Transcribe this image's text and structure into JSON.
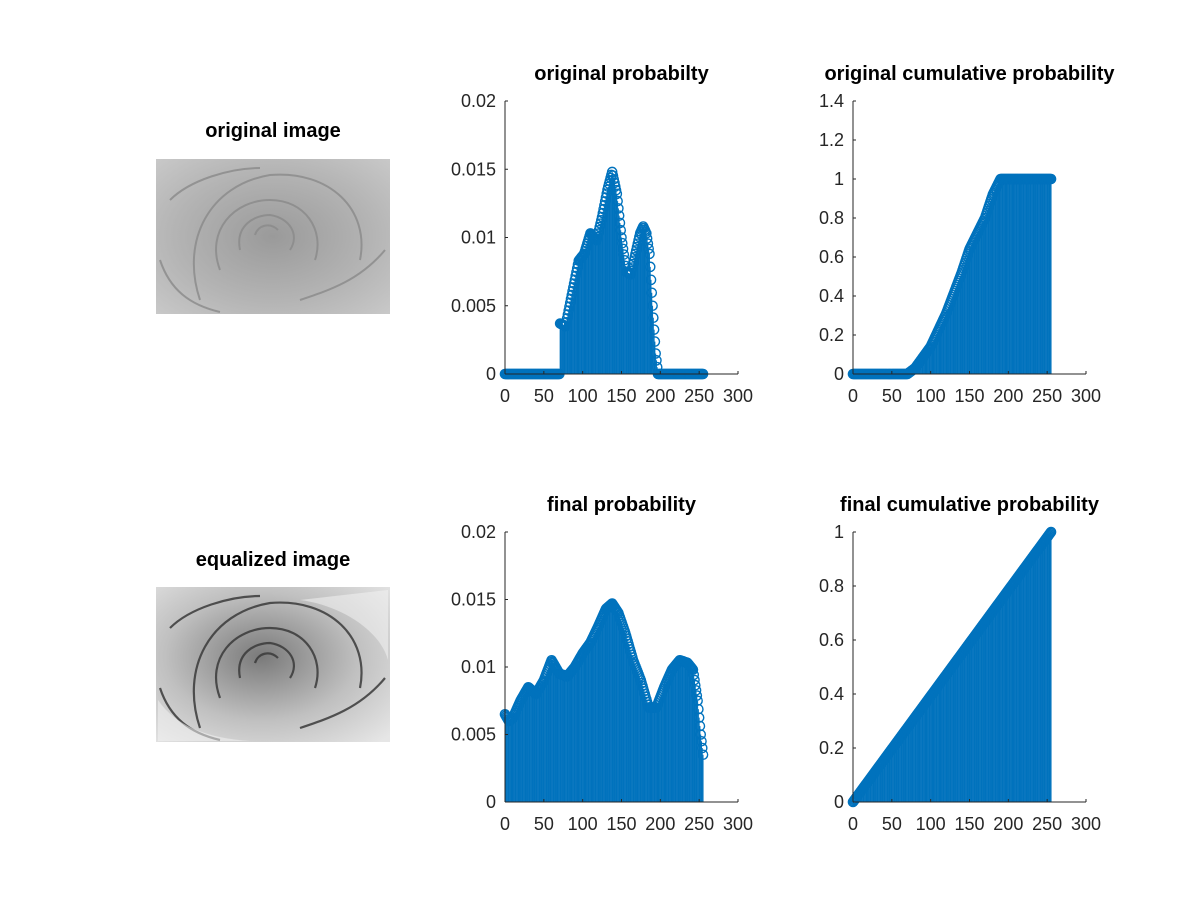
{
  "images": {
    "original": {
      "title": "original image"
    },
    "equalized": {
      "title": "equalized image"
    }
  },
  "chart_data": [
    {
      "id": "orig_prob",
      "type": "stem",
      "title": "original probabilty",
      "xlim": [
        0,
        300
      ],
      "ylim": [
        0,
        0.02
      ],
      "xticks": [
        0,
        50,
        100,
        150,
        200,
        250,
        300
      ],
      "yticks": [
        0,
        0.005,
        0.01,
        0.015,
        0.02
      ],
      "ytick_labels": [
        "0",
        "0.005",
        "0.01",
        "0.015",
        "0.02"
      ],
      "color": "#0072bd",
      "x_range": [
        0,
        255
      ],
      "profile": [
        [
          0,
          0
        ],
        [
          70,
          0
        ],
        [
          71,
          0.0037
        ],
        [
          78,
          0.0035
        ],
        [
          85,
          0.0055
        ],
        [
          95,
          0.0083
        ],
        [
          102,
          0.0088
        ],
        [
          110,
          0.0103
        ],
        [
          118,
          0.0098
        ],
        [
          125,
          0.0115
        ],
        [
          132,
          0.0135
        ],
        [
          138,
          0.0148
        ],
        [
          144,
          0.0132
        ],
        [
          150,
          0.01
        ],
        [
          156,
          0.0075
        ],
        [
          162,
          0.0073
        ],
        [
          168,
          0.0088
        ],
        [
          174,
          0.0103
        ],
        [
          178,
          0.0108
        ],
        [
          182,
          0.0103
        ],
        [
          186,
          0.0088
        ],
        [
          190,
          0.005
        ],
        [
          194,
          0.0015
        ],
        [
          197,
          0
        ],
        [
          255,
          0
        ]
      ]
    },
    {
      "id": "orig_cdf",
      "type": "stem",
      "title": "original cumulative probability",
      "xlim": [
        0,
        300
      ],
      "ylim": [
        0,
        1.4
      ],
      "xticks": [
        0,
        50,
        100,
        150,
        200,
        250,
        300
      ],
      "yticks": [
        0,
        0.2,
        0.4,
        0.6,
        0.8,
        1,
        1.2,
        1.4
      ],
      "ytick_labels": [
        "0",
        "0.2",
        "0.4",
        "0.6",
        "0.8",
        "1",
        "1.2",
        "1.4"
      ],
      "color": "#0072bd",
      "x_range": [
        0,
        255
      ],
      "profile": [
        [
          0,
          0
        ],
        [
          70,
          0
        ],
        [
          80,
          0.03
        ],
        [
          100,
          0.14
        ],
        [
          120,
          0.31
        ],
        [
          140,
          0.52
        ],
        [
          150,
          0.64
        ],
        [
          160,
          0.72
        ],
        [
          170,
          0.8
        ],
        [
          180,
          0.92
        ],
        [
          190,
          1.0
        ],
        [
          255,
          1.0
        ]
      ]
    },
    {
      "id": "final_prob",
      "type": "stem",
      "title": "final probability",
      "xlim": [
        0,
        300
      ],
      "ylim": [
        0,
        0.02
      ],
      "xticks": [
        0,
        50,
        100,
        150,
        200,
        250,
        300
      ],
      "yticks": [
        0,
        0.005,
        0.01,
        0.015,
        0.02
      ],
      "ytick_labels": [
        "0",
        "0.005",
        "0.01",
        "0.015",
        "0.02"
      ],
      "color": "#0072bd",
      "x_range": [
        0,
        255
      ],
      "profile": [
        [
          0,
          0.0065
        ],
        [
          5,
          0.006
        ],
        [
          10,
          0.0062
        ],
        [
          20,
          0.0075
        ],
        [
          30,
          0.0085
        ],
        [
          40,
          0.008
        ],
        [
          50,
          0.009
        ],
        [
          60,
          0.0105
        ],
        [
          70,
          0.0095
        ],
        [
          80,
          0.0093
        ],
        [
          90,
          0.01
        ],
        [
          100,
          0.011
        ],
        [
          110,
          0.0118
        ],
        [
          120,
          0.013
        ],
        [
          130,
          0.0143
        ],
        [
          138,
          0.0147
        ],
        [
          146,
          0.014
        ],
        [
          155,
          0.0125
        ],
        [
          165,
          0.0105
        ],
        [
          175,
          0.009
        ],
        [
          185,
          0.007
        ],
        [
          195,
          0.007
        ],
        [
          205,
          0.0085
        ],
        [
          215,
          0.0098
        ],
        [
          225,
          0.0105
        ],
        [
          235,
          0.0103
        ],
        [
          242,
          0.0098
        ],
        [
          248,
          0.0075
        ],
        [
          252,
          0.005
        ],
        [
          255,
          0.0035
        ]
      ]
    },
    {
      "id": "final_cdf",
      "type": "stem",
      "title": "final cumulative probability",
      "xlim": [
        0,
        300
      ],
      "ylim": [
        0,
        1
      ],
      "xticks": [
        0,
        50,
        100,
        150,
        200,
        250,
        300
      ],
      "yticks": [
        0,
        0.2,
        0.4,
        0.6,
        0.8,
        1
      ],
      "ytick_labels": [
        "0",
        "0.2",
        "0.4",
        "0.6",
        "0.8",
        "1"
      ],
      "color": "#0072bd",
      "x_range": [
        0,
        255
      ],
      "profile": [
        [
          0,
          0
        ],
        [
          255,
          1.0
        ]
      ]
    }
  ]
}
